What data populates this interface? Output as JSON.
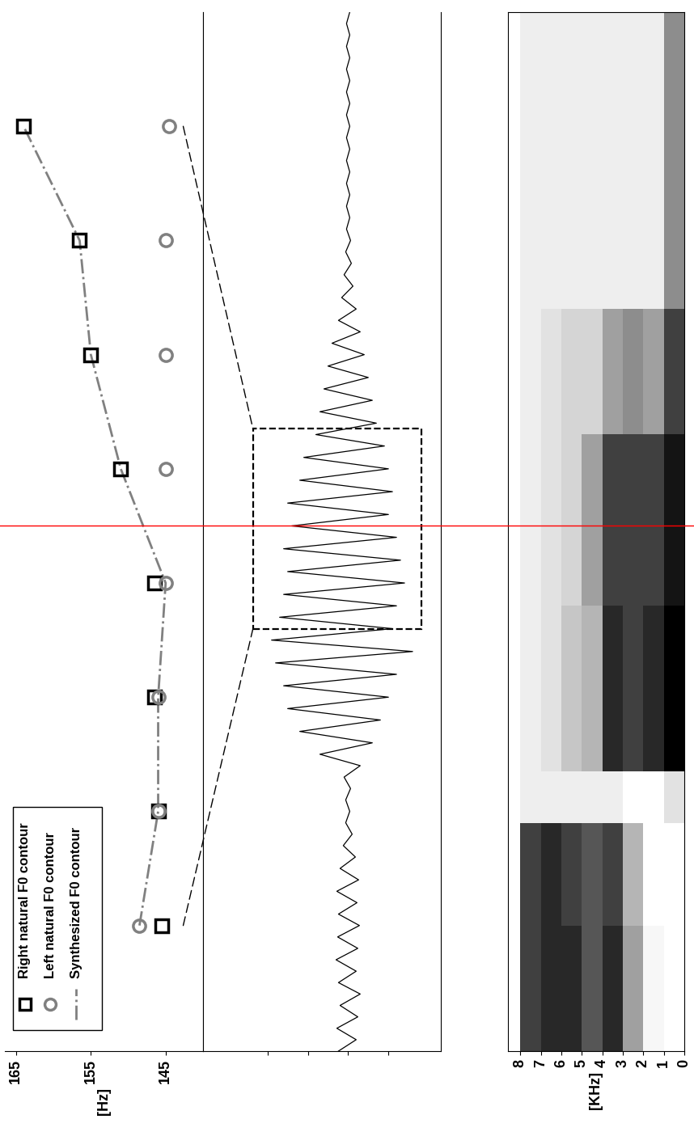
{
  "chart_data": [
    {
      "type": "line",
      "x": [
        1,
        2,
        3,
        4,
        5,
        6,
        7,
        8
      ],
      "xlim": [
        -0.1,
        9.0
      ],
      "ylim": [
        140,
        166.5
      ],
      "yticks": [
        145,
        155,
        165
      ],
      "ylabel": "[Hz]",
      "tick_labels": "y",
      "legend": "upper left",
      "series": [
        {
          "name": "Right natural F0 contour",
          "color": "#000000",
          "marker": "s",
          "line_style": "none",
          "values": [
            145.5,
            146,
            146.5,
            146.5,
            151,
            155,
            156.5,
            164
          ]
        },
        {
          "name": "Left natural F0 contour",
          "color": "#808080",
          "marker": "o",
          "line_style": "none",
          "values": [
            148.5,
            146,
            146,
            145,
            145,
            145,
            145,
            144.5
          ]
        },
        {
          "name": "Synthesized F0 contour",
          "color": "#808080",
          "marker": "none",
          "line_style": "dashdot",
          "values": [
            148.5,
            146,
            146,
            145,
            151,
            155,
            156.5,
            164
          ]
        }
      ]
    },
    {
      "type": "line",
      "color": "#000000",
      "xlim": [
        -0.1,
        9.0
      ],
      "ylim": [
        -1.15,
        1.8
      ],
      "yticks": [
        -0.5,
        0,
        0.5,
        1.0
      ],
      "tick_labels": false,
      "highlight_range": [
        3.6,
        5.35
      ],
      "cursor_time": 4.5,
      "x": [
        -0.1,
        0.0,
        0.1,
        0.2,
        0.3,
        0.4,
        0.5,
        0.6,
        0.7,
        0.8,
        0.9,
        1.0,
        1.1,
        1.2,
        1.3,
        1.4,
        1.5,
        1.6,
        1.7,
        1.8,
        1.9,
        2.0,
        2.1,
        2.2,
        2.3,
        2.4,
        2.5,
        2.6,
        2.7,
        2.8,
        2.9,
        3.0,
        3.1,
        3.2,
        3.3,
        3.4,
        3.5,
        3.6,
        3.7,
        3.8,
        3.9,
        4.0,
        4.1,
        4.2,
        4.3,
        4.4,
        4.5,
        4.6,
        4.7,
        4.8,
        4.9,
        5.0,
        5.1,
        5.2,
        5.3,
        5.4,
        5.5,
        5.6,
        5.7,
        5.8,
        5.9,
        6.0,
        6.1,
        6.2,
        6.3,
        6.4,
        6.5,
        6.6,
        6.7,
        6.8,
        6.9,
        7.0,
        7.1,
        7.2,
        7.3,
        7.4,
        7.5,
        7.6,
        7.7,
        7.8,
        7.9,
        8.0,
        8.1,
        8.2,
        8.3,
        8.4,
        8.5,
        8.6,
        8.7,
        8.8,
        8.9,
        9.0
      ],
      "values": [
        0.12,
        -0.1,
        0.14,
        -0.12,
        0.1,
        -0.15,
        0.12,
        -0.1,
        0.15,
        -0.12,
        0.13,
        -0.14,
        0.12,
        -0.11,
        0.14,
        -0.13,
        0.1,
        -0.09,
        0.06,
        -0.05,
        0.03,
        -0.02,
        0.03,
        -0.03,
        0.05,
        -0.15,
        0.35,
        -0.3,
        0.6,
        -0.4,
        0.75,
        -0.5,
        0.8,
        -0.6,
        0.9,
        -0.8,
        0.95,
        -0.55,
        0.85,
        -0.6,
        0.8,
        -0.7,
        0.75,
        -0.65,
        0.8,
        -0.6,
        0.7,
        -0.5,
        0.75,
        -0.55,
        0.6,
        -0.5,
        0.55,
        -0.45,
        0.4,
        -0.35,
        0.35,
        -0.3,
        0.3,
        -0.25,
        0.25,
        -0.2,
        0.2,
        -0.15,
        0.12,
        -0.1,
        0.08,
        -0.06,
        0.05,
        -0.04,
        0.03,
        -0.03,
        0.02,
        -0.02,
        0.02,
        -0.02,
        0.02,
        -0.02,
        0.02,
        -0.02,
        0.02,
        -0.02,
        0.02,
        -0.02,
        0.02,
        -0.02,
        0.02,
        -0.02,
        0.02,
        -0.02,
        0.02,
        -0.02
      ]
    },
    {
      "type": "heatmap",
      "xlim": [
        -0.1,
        9.0
      ],
      "ylim": [
        0,
        8.6
      ],
      "yticks": [
        0,
        1,
        2,
        3,
        4,
        5,
        6,
        7,
        8
      ],
      "ylabel": "[KHz]",
      "tick_labels": "y",
      "x_edges": [
        -0.1,
        1.0,
        1.9,
        2.35,
        3.8,
        5.3,
        6.4,
        9.0
      ],
      "y_edges": [
        0,
        1,
        2,
        3,
        4,
        5,
        6,
        7,
        8
      ],
      "values": [
        [
          0.2,
          0.25,
          0.55,
          0.85,
          0.75,
          0.85,
          0.85,
          0.8
        ],
        [
          0.2,
          0.2,
          0.5,
          0.8,
          0.75,
          0.8,
          0.85,
          0.8
        ],
        [
          0.35,
          0.2,
          0.2,
          0.3,
          0.3,
          0.3,
          0.3,
          0.3
        ],
        [
          0.95,
          0.85,
          0.8,
          0.85,
          0.5,
          0.45,
          0.35,
          0.3
        ],
        [
          0.9,
          0.8,
          0.8,
          0.8,
          0.55,
          0.4,
          0.35,
          0.3
        ],
        [
          0.8,
          0.55,
          0.6,
          0.55,
          0.4,
          0.4,
          0.35,
          0.3
        ],
        [
          0.6,
          0.3,
          0.3,
          0.3,
          0.3,
          0.3,
          0.3,
          0.3
        ]
      ]
    }
  ]
}
